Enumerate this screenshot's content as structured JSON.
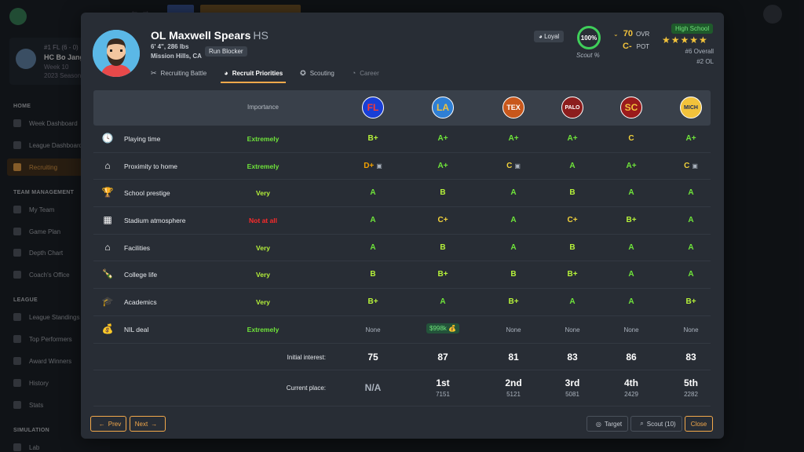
{
  "background": {
    "team_line1": "#1 FL (6 - 0)",
    "team_line2": "HC Bo Jangle",
    "team_line3": "Week 10",
    "team_line4": "2023 Season",
    "sections": [
      "HOME",
      "TEAM MANAGEMENT",
      "LEAGUE",
      "SIMULATION"
    ],
    "nav": [
      "Week Dashboard",
      "League Dashboard",
      "Recruiting",
      "My Team",
      "Game Plan",
      "Depth Chart",
      "Coach's Office",
      "League Standings",
      "Top Performers",
      "Award Winners",
      "History",
      "Stats",
      "Lab"
    ]
  },
  "player": {
    "name": "OL Maxwell Spears",
    "level": "HS",
    "height_weight": "6' 4\", 286 lbs",
    "hometown": "Mission Hills, CA",
    "role": "Run Blocker",
    "trait": "Loyal",
    "scout_percent": "100%",
    "scout_label": "Scout %",
    "ovr": "70",
    "ovr_label": "OVR",
    "pot": "C-",
    "pot_label": "POT",
    "school_badge": "High School",
    "stars": "★★★★★",
    "overall_rank": "#6 Overall",
    "position_rank": "#2 OL"
  },
  "tabs": [
    {
      "label": "Recruiting Battle",
      "icon": "✂"
    },
    {
      "label": "Recruit Priorities",
      "icon": "◕"
    },
    {
      "label": "Scouting",
      "icon": "✪"
    },
    {
      "label": "Career",
      "icon": "◔"
    }
  ],
  "table": {
    "importance_header": "Importance",
    "schools": [
      {
        "abbr": "FL",
        "bg": "#1a3fd6",
        "fg": "#ff3b30"
      },
      {
        "abbr": "LA",
        "bg": "#2f7fd4",
        "fg": "#f2c23b"
      },
      {
        "abbr": "TEX",
        "bg": "#c8571b",
        "fg": "#ffffff"
      },
      {
        "abbr": "PALO",
        "bg": "#8c1d1d",
        "fg": "#ffffff"
      },
      {
        "abbr": "SC",
        "bg": "#9b1b1b",
        "fg": "#f2c23b"
      },
      {
        "abbr": "MICH",
        "bg": "#f2c23b",
        "fg": "#1b2a5a"
      }
    ],
    "rows": [
      {
        "label": "Playing time",
        "icon": "🕓",
        "importance": "Extremely",
        "imp_class": "g-green",
        "grades": [
          "B+",
          "A+",
          "A+",
          "A+",
          "C",
          "A+"
        ],
        "grade_classes": [
          "g-lime",
          "g-green",
          "g-green",
          "g-green",
          "g-yellow",
          "g-green"
        ],
        "tv": [
          false,
          false,
          false,
          false,
          false,
          false
        ]
      },
      {
        "label": "Proximity to home",
        "icon": "⌂",
        "importance": "Extremely",
        "imp_class": "g-green",
        "grades": [
          "D+",
          "A+",
          "C",
          "A",
          "A+",
          "C"
        ],
        "grade_classes": [
          "g-orange",
          "g-green",
          "g-yellow",
          "g-green",
          "g-green",
          "g-yellow"
        ],
        "tv": [
          true,
          false,
          true,
          false,
          false,
          true
        ]
      },
      {
        "label": "School prestige",
        "icon": "🏆",
        "importance": "Very",
        "imp_class": "g-lime",
        "grades": [
          "A",
          "B",
          "A",
          "B",
          "A",
          "A"
        ],
        "grade_classes": [
          "g-green",
          "g-lime",
          "g-green",
          "g-lime",
          "g-green",
          "g-green"
        ],
        "tv": [
          false,
          false,
          false,
          false,
          false,
          false
        ]
      },
      {
        "label": "Stadium atmosphere",
        "icon": "▦",
        "importance": "Not at all",
        "imp_class": "g-red",
        "grades": [
          "A",
          "C+",
          "A",
          "C+",
          "B+",
          "A"
        ],
        "grade_classes": [
          "g-green",
          "g-yellow",
          "g-green",
          "g-yellow",
          "g-lime",
          "g-green"
        ],
        "tv": [
          false,
          false,
          false,
          false,
          false,
          false
        ]
      },
      {
        "label": "Facilities",
        "icon": "⌂",
        "importance": "Very",
        "imp_class": "g-lime",
        "grades": [
          "A",
          "B",
          "A",
          "B",
          "A",
          "A"
        ],
        "grade_classes": [
          "g-green",
          "g-lime",
          "g-green",
          "g-lime",
          "g-green",
          "g-green"
        ],
        "tv": [
          false,
          false,
          false,
          false,
          false,
          false
        ]
      },
      {
        "label": "College life",
        "icon": "🍾",
        "importance": "Very",
        "imp_class": "g-lime",
        "grades": [
          "B",
          "B+",
          "B",
          "B+",
          "A",
          "A"
        ],
        "grade_classes": [
          "g-lime",
          "g-lime",
          "g-lime",
          "g-lime",
          "g-green",
          "g-green"
        ],
        "tv": [
          false,
          false,
          false,
          false,
          false,
          false
        ]
      },
      {
        "label": "Academics",
        "icon": "🎓",
        "importance": "Very",
        "imp_class": "g-lime",
        "grades": [
          "B+",
          "A",
          "B+",
          "A",
          "A",
          "B+"
        ],
        "grade_classes": [
          "g-lime",
          "g-green",
          "g-lime",
          "g-green",
          "g-green",
          "g-lime"
        ],
        "tv": [
          false,
          false,
          false,
          false,
          false,
          false
        ]
      },
      {
        "label": "NIL deal",
        "icon": "💰",
        "importance": "Extremely",
        "imp_class": "g-green",
        "grades": [
          "None",
          "$998k",
          "None",
          "None",
          "None",
          "None"
        ],
        "grade_classes": [
          "none",
          "nil",
          "none",
          "none",
          "none",
          "none"
        ],
        "tv": [
          false,
          false,
          false,
          false,
          false,
          false
        ]
      }
    ],
    "initial_interest_label": "Initial interest:",
    "initial_interest": [
      "75",
      "87",
      "81",
      "83",
      "86",
      "83"
    ],
    "current_place_label": "Current place:",
    "current_place": [
      "N/A",
      "1st",
      "2nd",
      "3rd",
      "4th",
      "5th"
    ],
    "current_points": [
      "",
      "7151",
      "5121",
      "5081",
      "2429",
      "2282"
    ]
  },
  "footer": {
    "prev": "Prev",
    "next": "Next",
    "target": "Target",
    "scout": "Scout (10)",
    "close": "Close"
  }
}
